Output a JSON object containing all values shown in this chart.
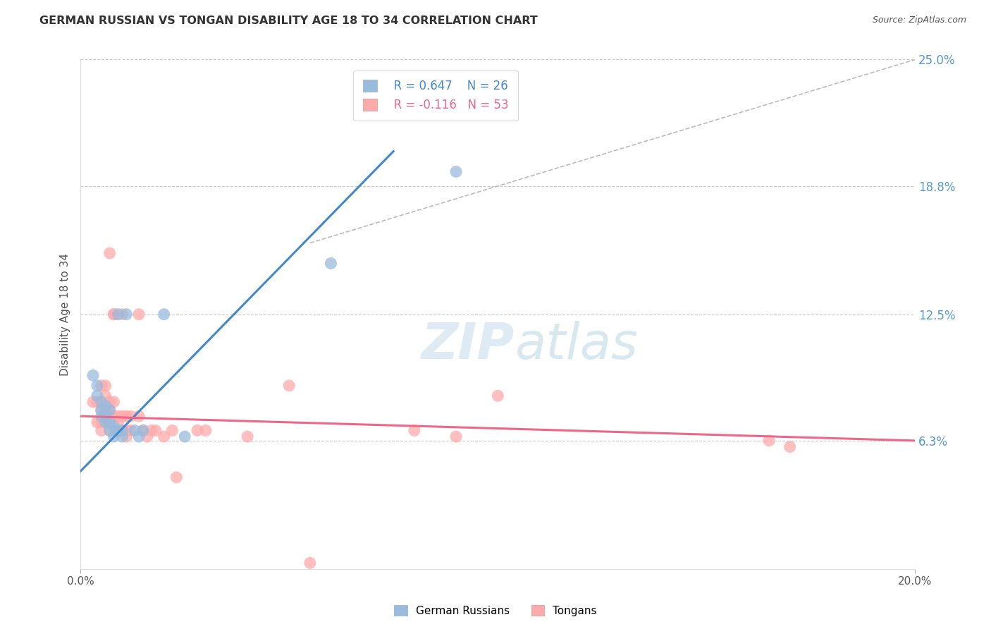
{
  "title": "GERMAN RUSSIAN VS TONGAN DISABILITY AGE 18 TO 34 CORRELATION CHART",
  "source": "Source: ZipAtlas.com",
  "ylabel": "Disability Age 18 to 34",
  "xlim": [
    0.0,
    0.2
  ],
  "ylim": [
    0.0,
    0.25
  ],
  "xtick_labels": [
    "0.0%",
    "20.0%"
  ],
  "ytick_labels": [
    "6.3%",
    "12.5%",
    "18.8%",
    "25.0%"
  ],
  "ytick_values": [
    0.063,
    0.125,
    0.188,
    0.25
  ],
  "xtick_values": [
    0.0,
    0.2
  ],
  "grid_color": "#c8c8c8",
  "background_color": "#ffffff",
  "watermark_zip": "ZIP",
  "watermark_atlas": "atlas",
  "legend_R_blue": "R = 0.647",
  "legend_N_blue": "N = 26",
  "legend_R_pink": "R = -0.116",
  "legend_N_pink": "N = 53",
  "blue_color": "#99bbdd",
  "pink_color": "#ffaaaa",
  "blue_line_color": "#4488cc",
  "pink_line_color": "#ee6688",
  "blue_text_color": "#4488cc",
  "pink_text_color": "#ee6688",
  "ytick_color": "#5599cc",
  "blue_scatter": [
    [
      0.003,
      0.095
    ],
    [
      0.004,
      0.085
    ],
    [
      0.004,
      0.09
    ],
    [
      0.005,
      0.082
    ],
    [
      0.005,
      0.078
    ],
    [
      0.005,
      0.075
    ],
    [
      0.006,
      0.08
    ],
    [
      0.006,
      0.075
    ],
    [
      0.006,
      0.072
    ],
    [
      0.007,
      0.078
    ],
    [
      0.007,
      0.072
    ],
    [
      0.007,
      0.068
    ],
    [
      0.008,
      0.07
    ],
    [
      0.008,
      0.065
    ],
    [
      0.009,
      0.125
    ],
    [
      0.009,
      0.068
    ],
    [
      0.01,
      0.068
    ],
    [
      0.01,
      0.065
    ],
    [
      0.011,
      0.125
    ],
    [
      0.013,
      0.068
    ],
    [
      0.014,
      0.065
    ],
    [
      0.015,
      0.068
    ],
    [
      0.02,
      0.125
    ],
    [
      0.025,
      0.065
    ],
    [
      0.06,
      0.15
    ],
    [
      0.09,
      0.195
    ]
  ],
  "pink_scatter": [
    [
      0.003,
      0.082
    ],
    [
      0.004,
      0.082
    ],
    [
      0.004,
      0.072
    ],
    [
      0.005,
      0.09
    ],
    [
      0.005,
      0.082
    ],
    [
      0.005,
      0.078
    ],
    [
      0.005,
      0.072
    ],
    [
      0.005,
      0.068
    ],
    [
      0.006,
      0.09
    ],
    [
      0.006,
      0.085
    ],
    [
      0.006,
      0.078
    ],
    [
      0.006,
      0.075
    ],
    [
      0.006,
      0.072
    ],
    [
      0.007,
      0.155
    ],
    [
      0.007,
      0.082
    ],
    [
      0.007,
      0.078
    ],
    [
      0.007,
      0.075
    ],
    [
      0.007,
      0.072
    ],
    [
      0.007,
      0.068
    ],
    [
      0.008,
      0.125
    ],
    [
      0.008,
      0.125
    ],
    [
      0.008,
      0.082
    ],
    [
      0.008,
      0.075
    ],
    [
      0.009,
      0.075
    ],
    [
      0.009,
      0.072
    ],
    [
      0.009,
      0.068
    ],
    [
      0.01,
      0.125
    ],
    [
      0.01,
      0.075
    ],
    [
      0.01,
      0.068
    ],
    [
      0.011,
      0.075
    ],
    [
      0.011,
      0.068
    ],
    [
      0.011,
      0.065
    ],
    [
      0.012,
      0.075
    ],
    [
      0.012,
      0.068
    ],
    [
      0.014,
      0.125
    ],
    [
      0.014,
      0.075
    ],
    [
      0.015,
      0.068
    ],
    [
      0.016,
      0.065
    ],
    [
      0.017,
      0.068
    ],
    [
      0.018,
      0.068
    ],
    [
      0.02,
      0.065
    ],
    [
      0.022,
      0.068
    ],
    [
      0.023,
      0.045
    ],
    [
      0.028,
      0.068
    ],
    [
      0.03,
      0.068
    ],
    [
      0.04,
      0.065
    ],
    [
      0.05,
      0.09
    ],
    [
      0.055,
      0.003
    ],
    [
      0.08,
      0.068
    ],
    [
      0.09,
      0.065
    ],
    [
      0.1,
      0.085
    ],
    [
      0.165,
      0.063
    ],
    [
      0.17,
      0.06
    ]
  ],
  "blue_line_x": [
    0.0,
    0.075
  ],
  "blue_line_y": [
    0.048,
    0.205
  ],
  "pink_line_x": [
    0.0,
    0.2
  ],
  "pink_line_y": [
    0.075,
    0.063
  ],
  "dash_line_x": [
    0.055,
    0.2
  ],
  "dash_line_y": [
    0.16,
    0.25
  ],
  "figsize": [
    14.06,
    8.92
  ],
  "dpi": 100
}
